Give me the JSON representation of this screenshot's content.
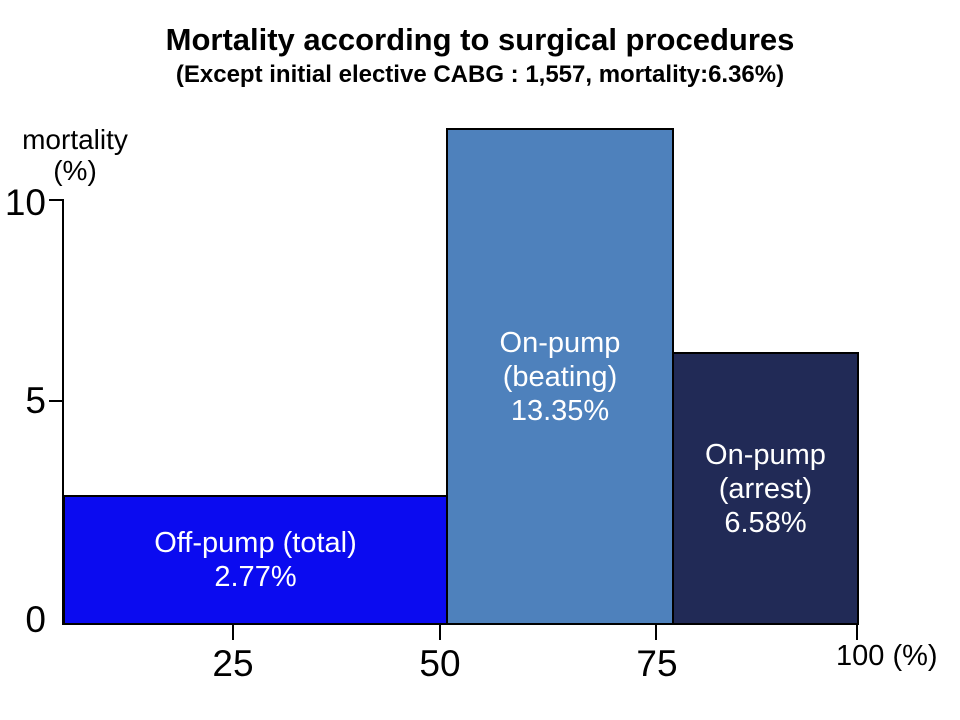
{
  "chart_data": {
    "type": "bar",
    "title": "Mortality according to surgical procedures",
    "subtitle": "(Except initial elective CABG : 1,557, mortality:6.36%)",
    "y_axis_label_lines": [
      "mortality",
      "(%)"
    ],
    "ylim": [
      0,
      10
    ],
    "xlim": [
      0,
      100
    ],
    "y_ticks_top_to_bottom": [
      "10",
      "5",
      "0"
    ],
    "x_ticks": [
      "25",
      "50",
      "75"
    ],
    "x_axis_end_label": "100 (%)",
    "axis_color": "#000000",
    "background_color": "#FFFFFF",
    "bar_label_text_color": "#FFFFFF",
    "bars": [
      {
        "name": "Off-pump (total)",
        "mortality_pct": 2.77,
        "x_span_pct": [
          0,
          48
        ],
        "color": "#0B0BF0",
        "label_lines": [
          "Off-pump (total)",
          "2.77%"
        ]
      },
      {
        "name": "On-pump (beating)",
        "mortality_pct": 13.35,
        "x_span_pct": [
          48,
          76.5
        ],
        "color": "#4E81BC",
        "label_lines": [
          "On-pump",
          "(beating)",
          "13.35%"
        ]
      },
      {
        "name": "On-pump (arrest)",
        "mortality_pct": 6.58,
        "x_span_pct": [
          76.5,
          100
        ],
        "color": "#212A56",
        "label_lines": [
          "On-pump",
          "(arrest)",
          "6.58%"
        ]
      }
    ]
  }
}
